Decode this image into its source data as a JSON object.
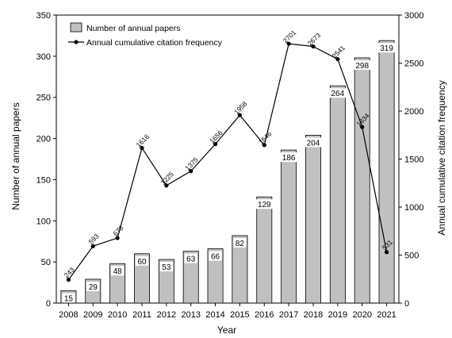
{
  "chart_data": {
    "type": "bar",
    "categories": [
      "2008",
      "2009",
      "2010",
      "2011",
      "2012",
      "2013",
      "2014",
      "2015",
      "2016",
      "2017",
      "2018",
      "2019",
      "2020",
      "2021"
    ],
    "series": [
      {
        "name": "Number of annual papers",
        "type": "bar",
        "axis": "left",
        "values": [
          15,
          29,
          48,
          60,
          53,
          63,
          66,
          82,
          129,
          186,
          204,
          264,
          298,
          319
        ],
        "labels": [
          "15",
          "29",
          "48",
          "60",
          "53",
          "63",
          "66",
          "82",
          "129",
          "186",
          "204",
          "264",
          "298",
          "319"
        ]
      },
      {
        "name": "Annual cumulative citation frequency",
        "type": "line",
        "axis": "right",
        "values": [
          243,
          593,
          678,
          1616,
          1225,
          1375,
          1656,
          1958,
          1646,
          2701,
          2673,
          2541,
          1834,
          531
        ],
        "labels": [
          "243",
          "593",
          "678",
          "1616",
          "1225",
          "1375",
          "1656",
          "1958",
          "1646",
          "2701",
          "2673",
          "2541",
          "1834",
          "531"
        ]
      }
    ],
    "xlabel": "Year",
    "ylabel": "Number of annual papers",
    "y2label": "Annual cumulative citation frequency",
    "ylim": [
      0,
      350
    ],
    "y2lim": [
      0,
      3000
    ],
    "yticks": [
      "0",
      "50",
      "100",
      "150",
      "200",
      "250",
      "300",
      "350"
    ],
    "y2ticks": [
      "0",
      "500",
      "1000",
      "1500",
      "2000",
      "2500",
      "3000"
    ],
    "grid": false,
    "legend_position": "top-left",
    "colors": {
      "bar_fill": "#c0c0c0",
      "bar_stroke": "#000000",
      "line": "#000000"
    }
  }
}
